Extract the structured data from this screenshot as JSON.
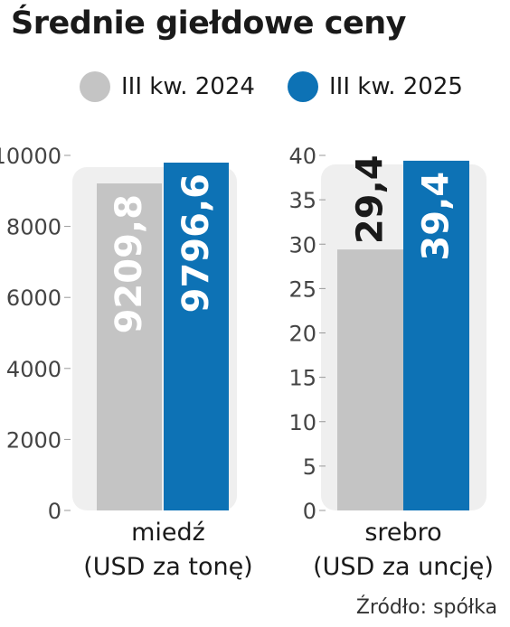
{
  "title": "Średnie giełdowe ceny",
  "source": "Źródło: spółka",
  "colors": {
    "series_2024": "#c4c4c4",
    "series_2025": "#0d72b5",
    "panel_bg": "#efefef",
    "axis_text": "#444444"
  },
  "chart_data": [
    {
      "type": "bar",
      "categories": [
        "miedź (USD za tonę)"
      ],
      "category_lines": [
        "miedź",
        "(USD za tonę)"
      ],
      "series": [
        {
          "name": "III kw. 2024",
          "values": [
            9209.8
          ],
          "label": "9209,8"
        },
        {
          "name": "III kw. 2025",
          "values": [
            9796.6
          ],
          "label": "9796,6"
        }
      ],
      "ylim": [
        0,
        10000
      ],
      "yticks": [
        "0",
        "2000",
        "4000",
        "6000",
        "8000",
        "10000"
      ],
      "ytick_values": [
        0,
        2000,
        4000,
        6000,
        8000,
        10000
      ]
    },
    {
      "type": "bar",
      "categories": [
        "srebro (USD za uncję)"
      ],
      "category_lines": [
        "srebro",
        "(USD za uncję)"
      ],
      "series": [
        {
          "name": "III kw. 2024",
          "values": [
            29.4
          ],
          "label": "29,4"
        },
        {
          "name": "III kw. 2025",
          "values": [
            39.4
          ],
          "label": "39,4"
        }
      ],
      "ylim": [
        0,
        40
      ],
      "yticks": [
        "0",
        "5",
        "10",
        "15",
        "20",
        "25",
        "30",
        "35",
        "40"
      ],
      "ytick_values": [
        0,
        5,
        10,
        15,
        20,
        25,
        30,
        35,
        40
      ]
    }
  ]
}
